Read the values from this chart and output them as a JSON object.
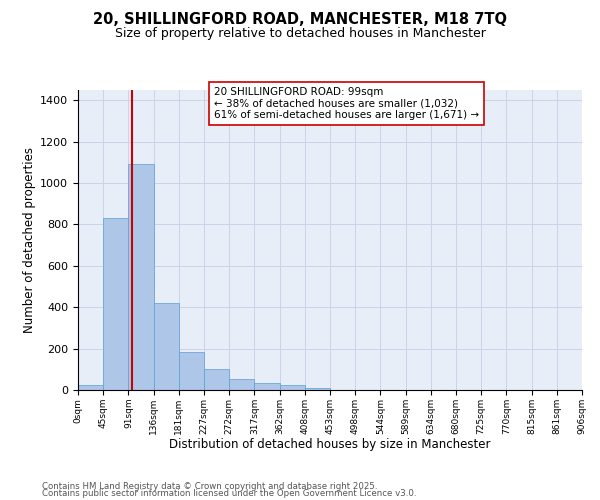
{
  "title_line1": "20, SHILLINGFORD ROAD, MANCHESTER, M18 7TQ",
  "title_line2": "Size of property relative to detached houses in Manchester",
  "xlabel": "Distribution of detached houses by size in Manchester",
  "ylabel": "Number of detached properties",
  "bar_values": [
    25,
    830,
    1090,
    420,
    185,
    100,
    55,
    35,
    25,
    10,
    0,
    0,
    0,
    0,
    0,
    0,
    0,
    0,
    0,
    0
  ],
  "categories": [
    "0sqm",
    "45sqm",
    "91sqm",
    "136sqm",
    "181sqm",
    "227sqm",
    "272sqm",
    "317sqm",
    "362sqm",
    "408sqm",
    "453sqm",
    "498sqm",
    "544sqm",
    "589sqm",
    "634sqm",
    "680sqm",
    "725sqm",
    "770sqm",
    "815sqm",
    "861sqm",
    "906sqm"
  ],
  "bar_color": "#aec6e8",
  "bar_edge_color": "#5a9fd4",
  "vline_x": 2.15,
  "vline_color": "#cc0000",
  "annotation_text": "20 SHILLINGFORD ROAD: 99sqm\n← 38% of detached houses are smaller (1,032)\n61% of semi-detached houses are larger (1,671) →",
  "ylim_max": 1450,
  "yticks": [
    0,
    200,
    400,
    600,
    800,
    1000,
    1200,
    1400
  ],
  "grid_color": "#c8d4e8",
  "bg_color": "#e8eef8",
  "footer_line1": "Contains HM Land Registry data © Crown copyright and database right 2025.",
  "footer_line2": "Contains public sector information licensed under the Open Government Licence v3.0."
}
